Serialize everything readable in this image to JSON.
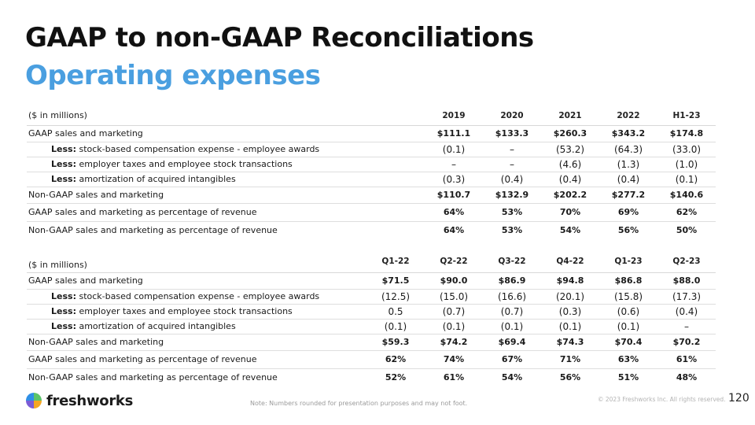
{
  "slide": {
    "title": "GAAP to non-GAAP Reconciliations",
    "subtitle": "Operating expenses",
    "note": "Note: Numbers rounded for presentation purposes and may not foot.",
    "copyright": "© 2023 Freshworks Inc. All rights reserved.",
    "page_number": "120",
    "logo_text": "freshworks",
    "brand_colors": {
      "title_blue": "#4a9fe0",
      "logo_green": "#5cc468",
      "logo_orange": "#f5a623",
      "logo_purple": "#7b5cd6",
      "logo_blue": "#2f8fe6"
    }
  },
  "tables": [
    {
      "unit_label": "($ in millions)",
      "columns": [
        "2019",
        "2020",
        "2021",
        "2022",
        "H1-23"
      ],
      "rows": [
        {
          "label": "GAAP sales and marketing",
          "values": [
            "$111.1",
            "$133.3",
            "$260.3",
            "$343.2",
            "$174.8"
          ]
        },
        {
          "lead": "Less:",
          "label": " stock-based compensation expense - employee awards",
          "values": [
            "(0.1)",
            "–",
            "(53.2)",
            "(64.3)",
            "(33.0)"
          ]
        },
        {
          "lead": "Less:",
          "label": " employer taxes and employee stock transactions",
          "values": [
            "–",
            "–",
            "(4.6)",
            "(1.3)",
            "(1.0)"
          ]
        },
        {
          "lead": "Less:",
          "label": " amortization of acquired intangibles",
          "values": [
            "(0.3)",
            "(0.4)",
            "(0.4)",
            "(0.4)",
            "(0.1)"
          ]
        },
        {
          "label": "Non-GAAP sales and marketing",
          "values": [
            "$110.7",
            "$132.9",
            "$202.2",
            "$277.2",
            "$140.6"
          ]
        },
        {
          "label": "GAAP sales and marketing as percentage of revenue",
          "values": [
            "64%",
            "53%",
            "70%",
            "69%",
            "62%"
          ]
        },
        {
          "label": "Non-GAAP sales and marketing as percentage of revenue",
          "values": [
            "64%",
            "53%",
            "54%",
            "56%",
            "50%"
          ]
        }
      ]
    },
    {
      "unit_label": "($ in millions)",
      "columns": [
        "Q1-22",
        "Q2-22",
        "Q3-22",
        "Q4-22",
        "Q1-23",
        "Q2-23"
      ],
      "rows": [
        {
          "label": "GAAP sales and marketing",
          "values": [
            "$71.5",
            "$90.0",
            "$86.9",
            "$94.8",
            "$86.8",
            "$88.0"
          ]
        },
        {
          "lead": "Less:",
          "label": " stock-based compensation expense - employee awards",
          "values": [
            "(12.5)",
            "(15.0)",
            "(16.6)",
            "(20.1)",
            "(15.8)",
            "(17.3)"
          ]
        },
        {
          "lead": "Less:",
          "label": " employer taxes and employee stock transactions",
          "values": [
            "0.5",
            "(0.7)",
            "(0.7)",
            "(0.3)",
            "(0.6)",
            "(0.4)"
          ]
        },
        {
          "lead": "Less:",
          "label": " amortization of acquired intangibles",
          "values": [
            "(0.1)",
            "(0.1)",
            "(0.1)",
            "(0.1)",
            "(0.1)",
            "–"
          ]
        },
        {
          "label": "Non-GAAP sales and marketing",
          "values": [
            "$59.3",
            "$74.2",
            "$69.4",
            "$74.3",
            "$70.4",
            "$70.2"
          ]
        },
        {
          "label": "GAAP sales and marketing as percentage of revenue",
          "values": [
            "62%",
            "74%",
            "67%",
            "71%",
            "63%",
            "61%"
          ]
        },
        {
          "label": "Non-GAAP sales and marketing as percentage of revenue",
          "values": [
            "52%",
            "61%",
            "54%",
            "56%",
            "51%",
            "48%"
          ]
        }
      ]
    }
  ]
}
